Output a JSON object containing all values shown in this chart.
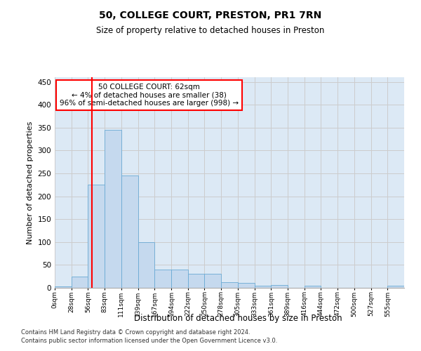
{
  "title1": "50, COLLEGE COURT, PRESTON, PR1 7RN",
  "title2": "Size of property relative to detached houses in Preston",
  "xlabel": "Distribution of detached houses by size in Preston",
  "ylabel": "Number of detached properties",
  "bin_labels": [
    "0sqm",
    "28sqm",
    "56sqm",
    "83sqm",
    "111sqm",
    "139sqm",
    "167sqm",
    "194sqm",
    "222sqm",
    "250sqm",
    "278sqm",
    "305sqm",
    "333sqm",
    "361sqm",
    "389sqm",
    "416sqm",
    "444sqm",
    "472sqm",
    "500sqm",
    "527sqm",
    "555sqm"
  ],
  "bar_heights": [
    3,
    25,
    225,
    345,
    245,
    100,
    40,
    40,
    30,
    30,
    13,
    10,
    5,
    6,
    0,
    4,
    0,
    0,
    0,
    0,
    4
  ],
  "bar_color": "#c5d9ee",
  "bar_edgecolor": "#6aaad4",
  "vline_color": "red",
  "annotation_line1": "50 COLLEGE COURT: 62sqm",
  "annotation_line2": "← 4% of detached houses are smaller (38)",
  "annotation_line3": "96% of semi-detached houses are larger (998) →",
  "annotation_box_color": "white",
  "annotation_box_edgecolor": "red",
  "ylim": [
    0,
    460
  ],
  "yticks": [
    0,
    50,
    100,
    150,
    200,
    250,
    300,
    350,
    400,
    450
  ],
  "footer1": "Contains HM Land Registry data © Crown copyright and database right 2024.",
  "footer2": "Contains public sector information licensed under the Open Government Licence v3.0.",
  "grid_color": "#cccccc",
  "plot_bg_color": "#dce9f5",
  "title1_fontsize": 10,
  "title2_fontsize": 8.5,
  "ylabel_fontsize": 8,
  "xlabel_fontsize": 8.5
}
